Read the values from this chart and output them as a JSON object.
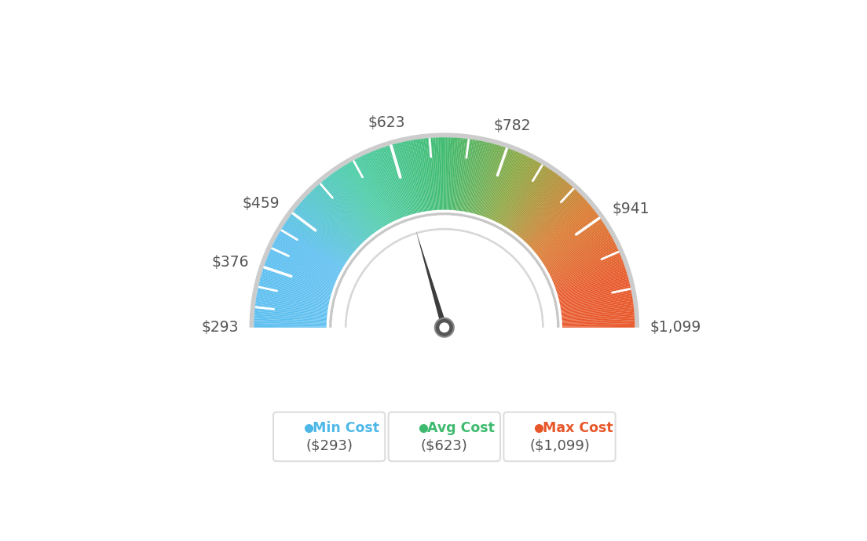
{
  "min_val": 293,
  "max_val": 1099,
  "avg_val": 623,
  "label_data": [
    [
      293,
      "$293"
    ],
    [
      376,
      "$376"
    ],
    [
      459,
      "$459"
    ],
    [
      623,
      "$623"
    ],
    [
      782,
      "$782"
    ],
    [
      941,
      "$941"
    ],
    [
      1099,
      "$1,099"
    ]
  ],
  "legend": [
    {
      "label": "Min Cost",
      "value": "($293)",
      "color": "#4db8e8"
    },
    {
      "label": "Avg Cost",
      "value": "($623)",
      "color": "#3dba6e"
    },
    {
      "label": "Max Cost",
      "value": "($1,099)",
      "color": "#e8572a"
    }
  ],
  "background_color": "#ffffff",
  "color_stops_angle": [
    [
      180,
      [
        0.36,
        0.75,
        0.94
      ]
    ],
    [
      150,
      [
        0.36,
        0.75,
        0.94
      ]
    ],
    [
      120,
      [
        0.29,
        0.8,
        0.65
      ]
    ],
    [
      90,
      [
        0.24,
        0.73,
        0.43
      ]
    ],
    [
      65,
      [
        0.55,
        0.65,
        0.25
      ]
    ],
    [
      40,
      [
        0.85,
        0.48,
        0.18
      ]
    ],
    [
      15,
      [
        0.91,
        0.34,
        0.16
      ]
    ],
    [
      0,
      [
        0.91,
        0.34,
        0.16
      ]
    ]
  ],
  "text_color": "#555555",
  "needle_color": "#3d3d3d",
  "outer_r": 1.05,
  "inner_r": 0.65,
  "gap_outer_r": 0.62,
  "gap_inner_r": 0.55
}
